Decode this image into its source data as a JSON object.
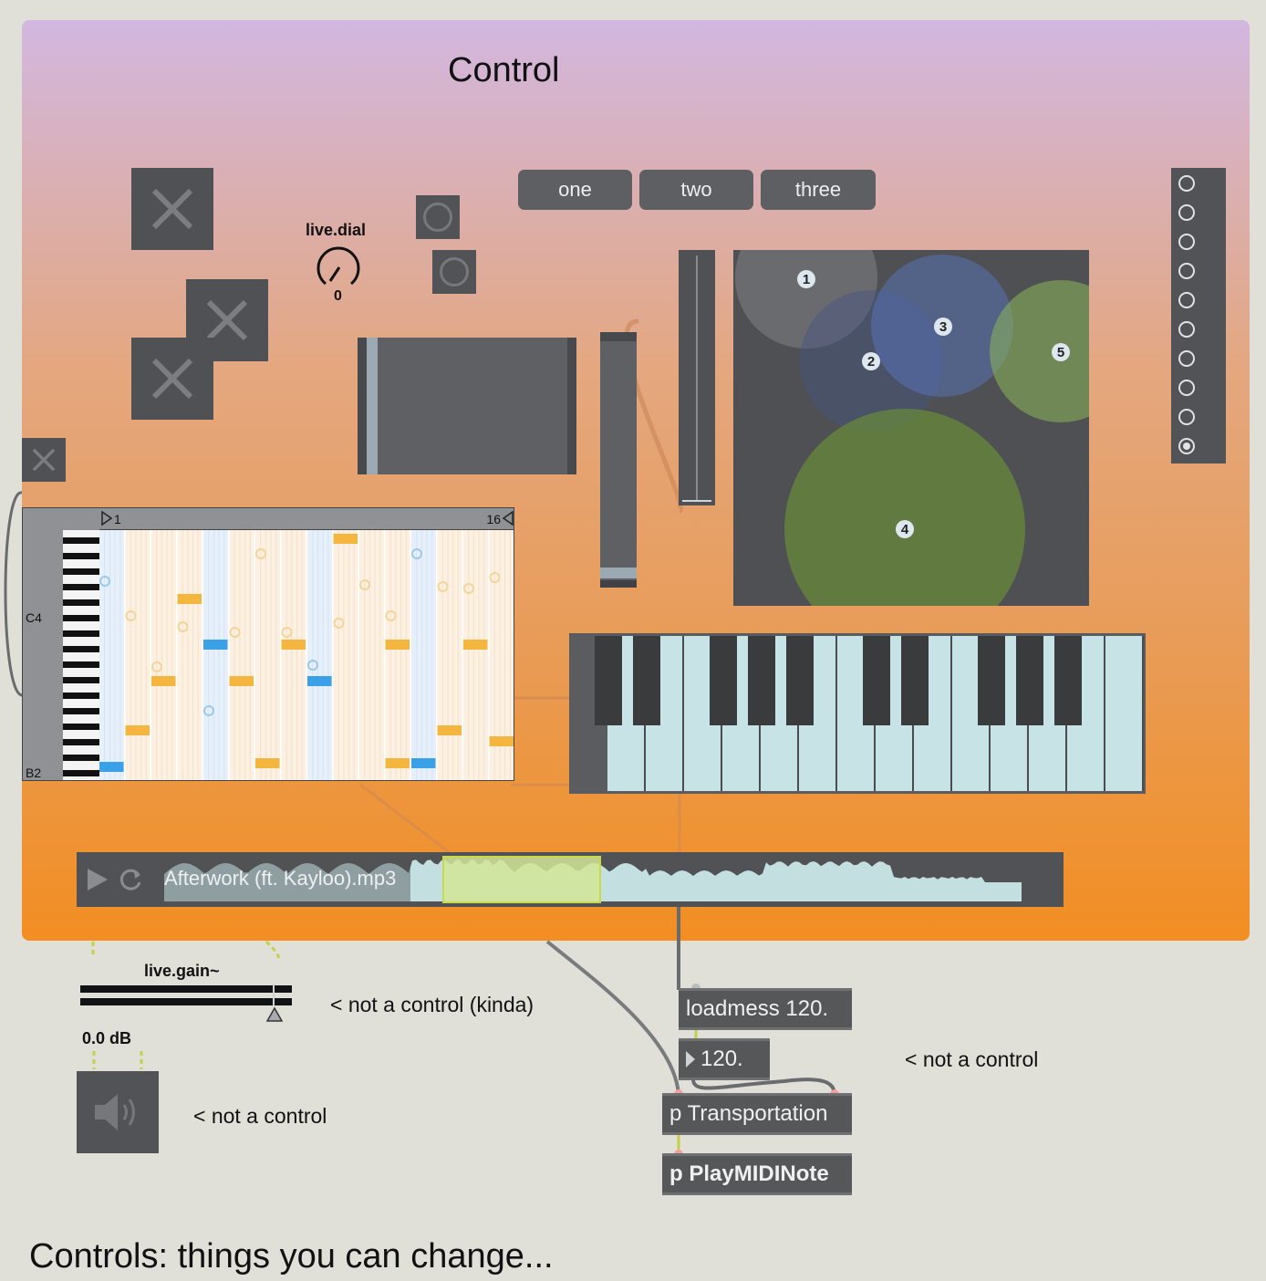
{
  "panel": {
    "title": "Control"
  },
  "dial": {
    "label": "live.dial",
    "value": "0"
  },
  "tab": {
    "options": [
      "one",
      "two",
      "three"
    ]
  },
  "nodes": {
    "labels": [
      "1",
      "2",
      "3",
      "4",
      "5"
    ]
  },
  "radiogroup": {
    "count": 10,
    "selected": 9
  },
  "sequencer": {
    "start": "1",
    "end": "16",
    "note_top": "C4",
    "note_bottom": "B2"
  },
  "audio": {
    "filename": "Afterwork (ft. Kayloo).mp3"
  },
  "gain": {
    "label": "live.gain~",
    "value": "0.0 dB"
  },
  "comments": {
    "kinda": "< not a control (kinda)",
    "speaker": "< not a control",
    "objects": "< not a control"
  },
  "objects": {
    "loadmess": "loadmess 120.",
    "number": "120.",
    "transport": "p Transportation",
    "playmidi": "p PlayMIDINote"
  },
  "footer": {
    "heading": "Controls: things you can change..."
  }
}
